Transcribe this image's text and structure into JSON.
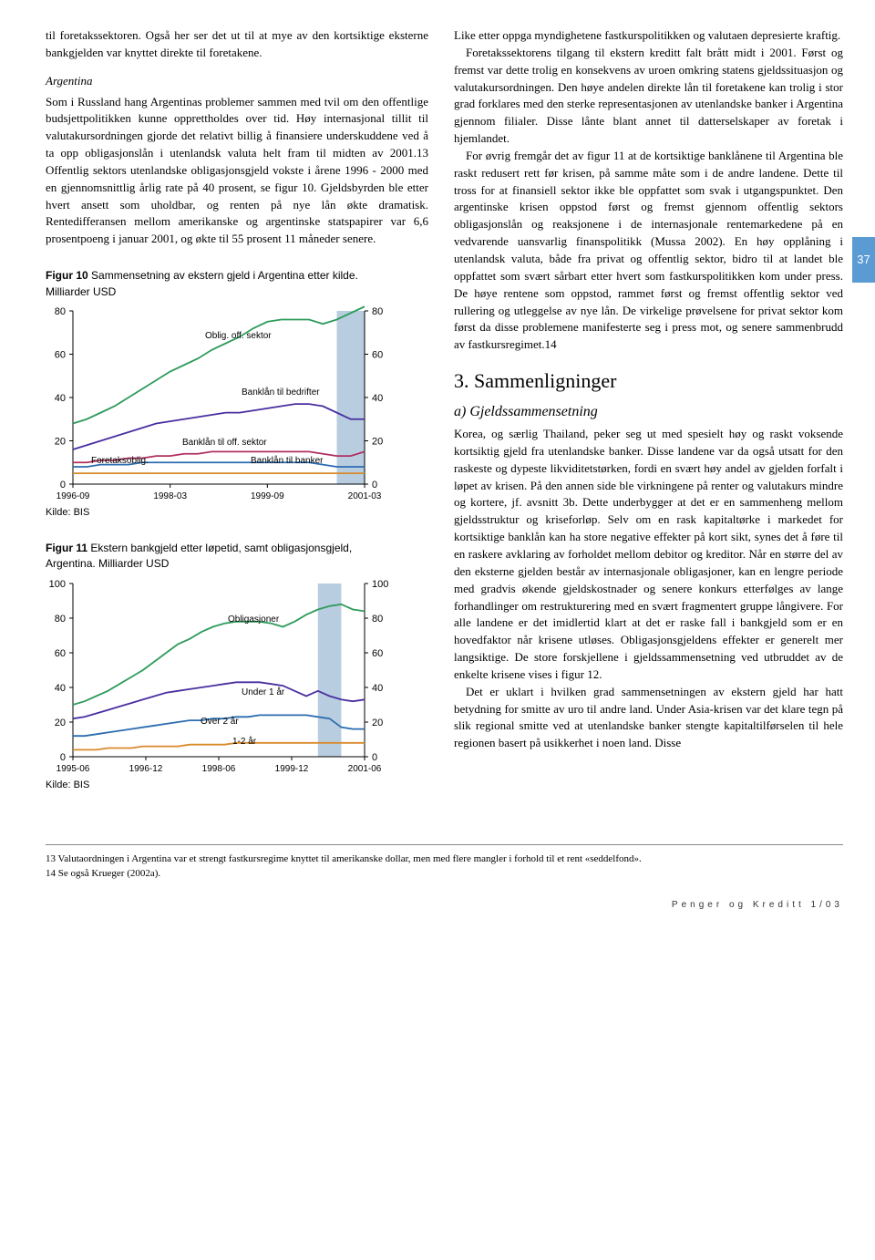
{
  "col_left": {
    "p1": "til foretakssektoren. Også her ser det ut til at mye av den kortsiktige eksterne bankgjelden var knyttet direkte til foretakene.",
    "heading_arg": "Argentina",
    "p2": "Som i Russland hang Argentinas problemer sammen med tvil om den offentlige budsjettpolitikken kunne opprettholdes over tid. Høy internasjonal tillit til valutakursordningen gjorde det relativt billig å finansiere underskuddene ved å ta opp obligasjonslån i utenlandsk valuta helt fram til midten av 2001.13 Offentlig sektors utenlandske obligasjonsgjeld vokste i årene 1996 - 2000 med en gjennomsnittlig årlig rate på 40 prosent, se figur 10. Gjeldsbyrden ble etter hvert ansett som uholdbar, og renten på nye lån økte dramatisk. Rentedifferansen mellom amerikanske og argentinske statspapirer var 6,6 prosentpoeng i januar 2001, og økte til 55 prosent 11 måneder senere."
  },
  "fig10": {
    "title_bold": "Figur 10",
    "title_rest": " Sammensetning av ekstern gjeld i Argentina etter kilde. Milliarder USD",
    "ylim": [
      0,
      80
    ],
    "ytick_step": 20,
    "x_labels": [
      "1996-09",
      "1998-03",
      "1999-09",
      "2001-03"
    ],
    "series": {
      "oblig_off": {
        "label": "Oblig. off. sektor",
        "color": "#2e9b5b",
        "values": [
          28,
          30,
          33,
          36,
          40,
          44,
          48,
          52,
          55,
          58,
          62,
          65,
          68,
          72,
          75,
          76,
          76,
          76,
          74,
          76,
          79,
          82
        ]
      },
      "bank_bedrifter": {
        "label": "Banklån til bedrifter",
        "color": "#4a2fa0",
        "values": [
          16,
          18,
          20,
          22,
          24,
          26,
          28,
          29,
          30,
          31,
          32,
          33,
          33,
          34,
          35,
          36,
          37,
          37,
          36,
          33,
          30,
          30
        ]
      },
      "bank_off": {
        "label": "Banklån til off. sektor",
        "color": "#b03060",
        "values": [
          10,
          10,
          11,
          11,
          12,
          12,
          13,
          13,
          14,
          14,
          15,
          15,
          15,
          15,
          15,
          15,
          15,
          15,
          14,
          13,
          13,
          15
        ]
      },
      "bank_banker": {
        "label": "Banklån til banker",
        "color": "#2b6db0",
        "values": [
          8,
          8,
          9,
          9,
          9,
          10,
          10,
          10,
          10,
          10,
          10,
          10,
          10,
          10,
          10,
          10,
          10,
          10,
          9,
          8,
          8,
          8
        ]
      },
      "foretaksoblig": {
        "label": "Foretaksoblig.",
        "color": "#d98a2b",
        "values": [
          5,
          5,
          5,
          5,
          5,
          5,
          5,
          5,
          5,
          5,
          5,
          5,
          5,
          5,
          5,
          5,
          5,
          5,
          5,
          5,
          5,
          5
        ]
      }
    },
    "shade_x": [
      19,
      21
    ],
    "source": "Kilde: BIS"
  },
  "fig11": {
    "title_bold": "Figur 11",
    "title_rest": " Ekstern bankgjeld etter løpetid, samt obligasjonsgjeld, Argentina. Milliarder USD",
    "ylim": [
      0,
      100
    ],
    "ytick_step": 20,
    "x_labels": [
      "1995-06",
      "1996-12",
      "1998-06",
      "1999-12",
      "2001-06"
    ],
    "series": {
      "obligasjoner": {
        "label": "Obligasjoner",
        "color": "#2e9b5b",
        "values": [
          30,
          32,
          35,
          38,
          42,
          46,
          50,
          55,
          60,
          65,
          68,
          72,
          75,
          77,
          78,
          78,
          78,
          77,
          75,
          78,
          82,
          85,
          87,
          88,
          85,
          84
        ]
      },
      "under1": {
        "label": "Under 1 år",
        "color": "#4a2fa0",
        "values": [
          22,
          23,
          25,
          27,
          29,
          31,
          33,
          35,
          37,
          38,
          39,
          40,
          41,
          42,
          43,
          43,
          43,
          42,
          41,
          38,
          35,
          38,
          35,
          33,
          32,
          33
        ]
      },
      "over2": {
        "label": "Over 2 år",
        "color": "#2b6db0",
        "values": [
          12,
          12,
          13,
          14,
          15,
          16,
          17,
          18,
          19,
          20,
          21,
          21,
          22,
          22,
          23,
          23,
          24,
          24,
          24,
          24,
          24,
          23,
          22,
          17,
          16,
          16
        ]
      },
      "1_2": {
        "label": "1-2 år",
        "color": "#d98a2b",
        "values": [
          4,
          4,
          4,
          5,
          5,
          5,
          6,
          6,
          6,
          6,
          7,
          7,
          7,
          7,
          8,
          8,
          8,
          8,
          8,
          8,
          8,
          8,
          8,
          8,
          8,
          8
        ]
      }
    },
    "shade_x": [
      21,
      23
    ],
    "source": "Kilde: BIS"
  },
  "col_right": {
    "p1": "Like etter oppga myndighetene fastkurspolitikken og valutaen depresierte kraftig.",
    "p2": "Foretakssektorens tilgang til ekstern kreditt falt brått midt i 2001. Først og fremst var dette trolig en konsekvens av uroen omkring statens gjeldssituasjon og valutakursordningen. Den høye andelen direkte lån til foretakene kan trolig i stor grad forklares med den sterke representasjonen av utenlandske banker i Argentina gjennom filialer. Disse lånte blant annet til datterselskaper av foretak i hjemlandet.",
    "p3": "For øvrig fremgår det av figur 11 at de kortsiktige banklånene til Argentina ble raskt redusert rett før krisen, på samme måte som i de andre landene. Dette til tross for at finansiell sektor ikke ble oppfattet som svak i utgangspunktet. Den argentinske krisen oppstod først og fremst gjennom offentlig sektors obligasjonslån og reaksjonene i de internasjonale rentemarkedene på en vedvarende uansvarlig finanspolitikk (Mussa 2002). En høy opplåning i utenlandsk valuta, både fra privat og offentlig sektor, bidro til at landet ble oppfattet som svært sårbart etter hvert som fastkurspolitikken kom under press. De høye rentene som oppstod, rammet først og fremst offentlig sektor ved rullering og utleggelse av nye lån. De virkelige prøvelsene for privat sektor kom først da disse problemene manifesterte seg i press mot, og senere sammenbrudd av fastkursregimet.14",
    "h2": "3. Sammenligninger",
    "h3": "a) Gjeldssammensetning",
    "p4": "Korea, og særlig Thailand, peker seg ut med spesielt høy og raskt voksende kortsiktig gjeld fra utenlandske banker. Disse landene var da også utsatt for den raskeste og dypeste likviditetstørken, fordi en svært høy andel av gjelden forfalt i løpet av krisen. På den annen side ble virkningene på renter og valutakurs mindre og kortere, jf. avsnitt 3b. Dette underbygger at det er en sammenheng mellom gjeldsstruktur og kriseforløp. Selv om en rask kapitaltørke i markedet for kortsiktige banklån kan ha store negative effekter på kort sikt, synes det å føre til en raskere avklaring av forholdet mellom debitor og kreditor. Når en større del av den eksterne gjelden består av internasjonale obligasjoner, kan en lengre periode med gradvis økende gjeldskostnader og senere konkurs etterfølges av lange forhandlinger om restrukturering med en svært fragmentert gruppe långivere. For alle landene er det imidlertid klart at det er raske fall i bankgjeld som er en hovedfaktor når krisene utløses. Obligasjonsgjeldens effekter er generelt mer langsiktige. De store forskjellene i gjeldssammensetning ved utbruddet av de enkelte krisene vises i figur 12.",
    "p5": "Det er uklart i hvilken grad sammensetningen av ekstern gjeld har hatt betydning for smitte av uro til andre land. Under Asia-krisen var det klare tegn på slik regional smitte ved at utenlandske banker stengte kapitaltilførselen til hele regionen basert på usikkerhet i noen land. Disse"
  },
  "tab": "37",
  "fn13": "13 Valutaordningen i Argentina var et strengt fastkursregime knyttet til amerikanske dollar, men med flere mangler i forhold til et rent «seddelfond».",
  "fn14": "14 Se også Krueger (2002a).",
  "footer": "Penger og Kreditt 1/03"
}
